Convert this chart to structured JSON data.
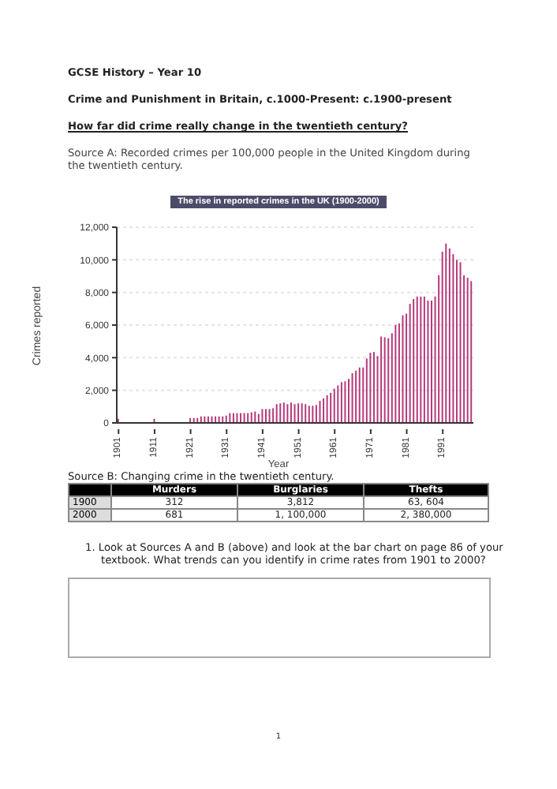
{
  "chart_data": {
    "type": "bar",
    "title": "The rise in reported crimes in the UK (1900-2000)",
    "xlabel": "Year",
    "ylabel": "Crimes reported",
    "categories": [
      "1901",
      null,
      null,
      null,
      null,
      null,
      null,
      null,
      null,
      null,
      "1911",
      null,
      null,
      null,
      null,
      null,
      null,
      null,
      null,
      null,
      "1921",
      null,
      null,
      null,
      null,
      null,
      null,
      null,
      null,
      null,
      "1931",
      null,
      null,
      null,
      null,
      null,
      null,
      null,
      null,
      null,
      "1941",
      null,
      null,
      null,
      null,
      null,
      null,
      null,
      null,
      null,
      "1951",
      null,
      null,
      null,
      null,
      null,
      null,
      null,
      null,
      null,
      "1961",
      null,
      null,
      null,
      null,
      null,
      null,
      null,
      null,
      null,
      "1971",
      null,
      null,
      null,
      null,
      null,
      null,
      null,
      null,
      null,
      "1981",
      null,
      null,
      null,
      null,
      null,
      null,
      null,
      null,
      null,
      "1991",
      null,
      null,
      null,
      null,
      null,
      null,
      null,
      null
    ],
    "values": [
      250,
      null,
      null,
      null,
      null,
      null,
      null,
      null,
      null,
      null,
      250,
      null,
      null,
      null,
      null,
      null,
      null,
      null,
      null,
      null,
      300,
      300,
      300,
      400,
      400,
      400,
      400,
      400,
      400,
      400,
      450,
      600,
      600,
      600,
      600,
      600,
      600,
      650,
      700,
      550,
      850,
      850,
      850,
      900,
      1150,
      1200,
      1250,
      1150,
      1250,
      1150,
      1200,
      1200,
      1150,
      1050,
      1050,
      1100,
      1350,
      1500,
      1700,
      1850,
      2100,
      2300,
      2500,
      2550,
      2700,
      3050,
      3200,
      3400,
      3400,
      3950,
      4300,
      4350,
      4100,
      5300,
      5250,
      5200,
      5500,
      6000,
      6100,
      6600,
      6700,
      7300,
      7600,
      7750,
      7750,
      7750,
      7500,
      7500,
      7750,
      9050,
      10500,
      11000,
      10700,
      10350,
      10000,
      9850,
      9050,
      8900,
      8700
    ],
    "color": "#b5397a",
    "ylim": [
      0,
      12000
    ],
    "yticks": [
      {
        "value": 0,
        "label": "0"
      },
      {
        "value": 2000,
        "label": "2,000"
      },
      {
        "value": 4000,
        "label": "4,000"
      },
      {
        "value": 6000,
        "label": "6,000"
      },
      {
        "value": 8000,
        "label": "8,000"
      },
      {
        "value": 10000,
        "label": "10,000"
      },
      {
        "value": 12000,
        "label": "12,000"
      }
    ],
    "grid": "y",
    "legend": false,
    "annotations": [
      "GCSE History – Year 10",
      "Crime and Punishment in Britain, c.1000-Present: c.1900-present",
      "How far did crime really change in the twentieth century?",
      "Source A: Recorded crimes per 100,000 people in the United Kingdom during the twentieth century.",
      "Source B: Changing crime in the twentieth century.",
      "Murders",
      "Burglaries",
      "Thefts",
      "1900",
      "312",
      "3,812",
      "63, 604",
      "2000",
      "681",
      "1, 100,000",
      "2, 380,000",
      "1. Look at Sources A and B (above) and look at the bar chart on page 86 of your textbook. What trends can you identify in crime rates from 1901 to 2000?",
      "1"
    ]
  }
}
